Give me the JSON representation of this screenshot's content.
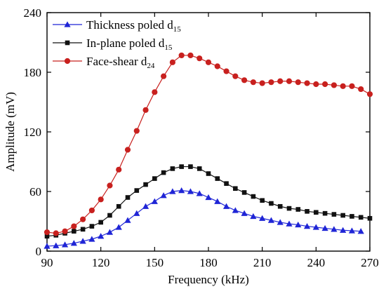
{
  "chart_data": {
    "type": "line",
    "xlabel": "Frequency (kHz)",
    "ylabel": "Amplitude (mV)",
    "xlim": [
      90,
      270
    ],
    "ylim": [
      0,
      240
    ],
    "xticks": [
      "90",
      "120",
      "150",
      "180",
      "210",
      "240",
      "270"
    ],
    "yticks": [
      "0",
      "60",
      "120",
      "180",
      "240"
    ],
    "legend_position": "top-left",
    "grid": false,
    "series": [
      {
        "name": "Thickness poled d15",
        "name_main": "Thickness poled d",
        "name_sub": "15",
        "color": "#1f25d6",
        "marker": "triangle",
        "x": [
          90,
          95,
          100,
          105,
          110,
          115,
          120,
          125,
          130,
          135,
          140,
          145,
          150,
          155,
          160,
          165,
          170,
          175,
          180,
          185,
          190,
          195,
          200,
          205,
          210,
          215,
          220,
          225,
          230,
          235,
          240,
          245,
          250,
          255,
          260,
          265
        ],
        "y": [
          5,
          5.5,
          6.5,
          8,
          10,
          12,
          15,
          19,
          24,
          31,
          38,
          45,
          50,
          56,
          60,
          61,
          60,
          58,
          54,
          50,
          45,
          41,
          38,
          35,
          33,
          31,
          29,
          27.5,
          26.5,
          25,
          24,
          23,
          22,
          21,
          20.5,
          20
        ]
      },
      {
        "name": "In-plane poled d15",
        "name_main": "In-plane poled d",
        "name_sub": "15",
        "color": "#111111",
        "marker": "square",
        "x": [
          90,
          95,
          100,
          105,
          110,
          115,
          120,
          125,
          130,
          135,
          140,
          145,
          150,
          155,
          160,
          165,
          170,
          175,
          180,
          185,
          190,
          195,
          200,
          205,
          210,
          215,
          220,
          225,
          230,
          235,
          240,
          245,
          250,
          255,
          260,
          265,
          270
        ],
        "y": [
          15,
          16,
          18,
          20,
          22,
          25,
          29,
          36,
          45,
          54,
          61,
          67,
          73,
          79,
          83,
          85,
          85,
          83,
          78,
          73,
          68,
          63,
          59,
          55,
          51,
          48,
          45,
          43,
          42,
          40,
          39,
          38,
          37,
          36,
          35,
          34,
          33
        ]
      },
      {
        "name": "Face-shear d24",
        "name_main": "Face-shear d",
        "name_sub": "24",
        "color": "#c8201e",
        "marker": "circle",
        "x": [
          90,
          95,
          100,
          105,
          110,
          115,
          120,
          125,
          130,
          135,
          140,
          145,
          150,
          155,
          160,
          165,
          170,
          175,
          180,
          185,
          190,
          195,
          200,
          205,
          210,
          215,
          220,
          225,
          230,
          235,
          240,
          245,
          250,
          255,
          260,
          265,
          270
        ],
        "y": [
          19,
          18,
          20,
          25,
          32,
          41,
          52,
          66,
          82,
          102,
          121,
          142,
          160,
          176,
          190,
          197,
          197,
          194,
          190,
          186,
          181,
          176,
          172,
          170,
          169,
          170,
          171,
          171,
          170,
          169,
          168,
          168,
          167,
          166,
          166,
          163,
          158
        ]
      }
    ]
  }
}
